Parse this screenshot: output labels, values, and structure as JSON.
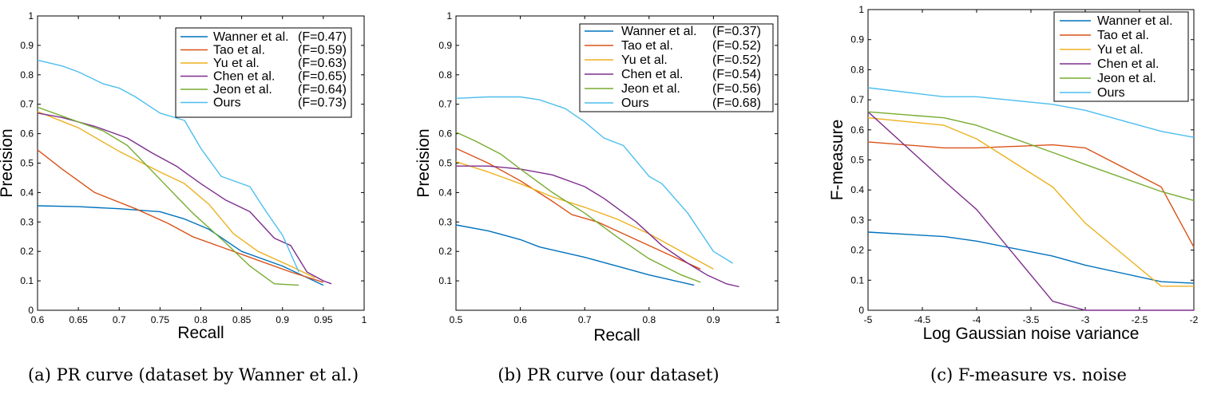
{
  "chart_data": [
    {
      "type": "line",
      "caption": "(a) PR curve (dataset by Wanner et al.)",
      "xlabel": "Recall",
      "ylabel": "Precision",
      "xlim": [
        0.6,
        1.0
      ],
      "ylim": [
        0,
        1
      ],
      "xticks": [
        0.6,
        0.65,
        0.7,
        0.75,
        0.8,
        0.85,
        0.9,
        0.95,
        1.0
      ],
      "xtick_labels": [
        "0.6",
        "0.65",
        "0.7",
        "0.75",
        "0.8",
        "0.85",
        "0.9",
        "0.95",
        "1"
      ],
      "yticks": [
        0,
        0.1,
        0.2,
        0.3,
        0.4,
        0.5,
        0.6,
        0.7,
        0.8,
        0.9,
        1.0
      ],
      "ytick_labels": [
        "0",
        "0.1",
        "0.2",
        "0.3",
        "0.4",
        "0.5",
        "0.6",
        "0.7",
        "0.8",
        "0.9",
        "1"
      ],
      "legend_position": "top-right",
      "grid": false,
      "series": [
        {
          "name": "Wanner et al.",
          "f_label": "(F=0.47)",
          "color": "#0072bd",
          "x": [
            0.6,
            0.65,
            0.7,
            0.75,
            0.78,
            0.81,
            0.85,
            0.9,
            0.95
          ],
          "y": [
            0.355,
            0.352,
            0.345,
            0.335,
            0.31,
            0.275,
            0.2,
            0.15,
            0.085
          ]
        },
        {
          "name": "Tao et al.",
          "f_label": "(F=0.59)",
          "color": "#d95319",
          "x": [
            0.6,
            0.63,
            0.67,
            0.72,
            0.76,
            0.79,
            0.83,
            0.87,
            0.91,
            0.95
          ],
          "y": [
            0.545,
            0.48,
            0.4,
            0.345,
            0.295,
            0.25,
            0.21,
            0.17,
            0.13,
            0.095
          ]
        },
        {
          "name": "Yu et al.",
          "f_label": "(F=0.63)",
          "color": "#edb120",
          "x": [
            0.6,
            0.65,
            0.7,
            0.75,
            0.78,
            0.81,
            0.84,
            0.87,
            0.91,
            0.94
          ],
          "y": [
            0.675,
            0.62,
            0.54,
            0.47,
            0.43,
            0.36,
            0.26,
            0.2,
            0.15,
            0.11
          ]
        },
        {
          "name": "Chen et al.",
          "f_label": "(F=0.65)",
          "color": "#7e2f8e",
          "x": [
            0.6,
            0.63,
            0.67,
            0.71,
            0.74,
            0.77,
            0.8,
            0.83,
            0.86,
            0.89,
            0.91,
            0.93,
            0.95,
            0.96
          ],
          "y": [
            0.67,
            0.655,
            0.625,
            0.585,
            0.535,
            0.49,
            0.43,
            0.375,
            0.335,
            0.245,
            0.22,
            0.13,
            0.1,
            0.09
          ]
        },
        {
          "name": "Jeon et al.",
          "f_label": "(F=0.64)",
          "color": "#77ac30",
          "x": [
            0.6,
            0.64,
            0.68,
            0.71,
            0.75,
            0.79,
            0.83,
            0.86,
            0.89,
            0.92
          ],
          "y": [
            0.69,
            0.65,
            0.61,
            0.56,
            0.445,
            0.33,
            0.23,
            0.15,
            0.09,
            0.085
          ]
        },
        {
          "name": "Ours",
          "f_label": "(F=0.73)",
          "color": "#4dbeee",
          "x": [
            0.6,
            0.63,
            0.65,
            0.68,
            0.7,
            0.72,
            0.75,
            0.78,
            0.8,
            0.825,
            0.86,
            0.88,
            0.9,
            0.92
          ],
          "y": [
            0.85,
            0.83,
            0.81,
            0.77,
            0.755,
            0.725,
            0.67,
            0.645,
            0.55,
            0.455,
            0.42,
            0.335,
            0.255,
            0.13
          ]
        }
      ]
    },
    {
      "type": "line",
      "caption": "(b) PR curve (our dataset)",
      "xlabel": "Recall",
      "ylabel": "Precision",
      "xlim": [
        0.5,
        1.0
      ],
      "ylim": [
        0,
        1
      ],
      "xticks": [
        0.5,
        0.6,
        0.7,
        0.8,
        0.9,
        1.0
      ],
      "xtick_labels": [
        "0.5",
        "0.6",
        "0.7",
        "0.8",
        "0.9",
        "1"
      ],
      "yticks": [
        0,
        0.1,
        0.2,
        0.3,
        0.4,
        0.5,
        0.6,
        0.7,
        0.8,
        0.9,
        1.0
      ],
      "ytick_labels": [
        "",
        "0.1",
        "0.2",
        "0.3",
        "0.4",
        "0.5",
        "0.6",
        "0.7",
        "0.8",
        "0.9",
        "1"
      ],
      "legend_position": "top-right",
      "grid": false,
      "series": [
        {
          "name": "Wanner et al.",
          "f_label": "(F=0.37)",
          "color": "#0072bd",
          "x": [
            0.5,
            0.55,
            0.6,
            0.63,
            0.7,
            0.75,
            0.8,
            0.87
          ],
          "y": [
            0.29,
            0.27,
            0.24,
            0.215,
            0.18,
            0.15,
            0.12,
            0.085
          ]
        },
        {
          "name": "Tao et al.",
          "f_label": "(F=0.52)",
          "color": "#d95319",
          "x": [
            0.5,
            0.55,
            0.6,
            0.65,
            0.68,
            0.72,
            0.77,
            0.82,
            0.86,
            0.88
          ],
          "y": [
            0.55,
            0.5,
            0.44,
            0.37,
            0.325,
            0.3,
            0.25,
            0.2,
            0.16,
            0.14
          ]
        },
        {
          "name": "Yu et al.",
          "f_label": "(F=0.52)",
          "color": "#edb120",
          "x": [
            0.5,
            0.55,
            0.6,
            0.65,
            0.7,
            0.75,
            0.8,
            0.85,
            0.9
          ],
          "y": [
            0.505,
            0.47,
            0.43,
            0.385,
            0.35,
            0.31,
            0.26,
            0.2,
            0.14
          ]
        },
        {
          "name": "Chen et al.",
          "f_label": "(F=0.54)",
          "color": "#7e2f8e",
          "x": [
            0.5,
            0.55,
            0.6,
            0.65,
            0.7,
            0.73,
            0.78,
            0.82,
            0.86,
            0.89,
            0.92,
            0.94
          ],
          "y": [
            0.49,
            0.49,
            0.48,
            0.46,
            0.42,
            0.38,
            0.3,
            0.22,
            0.16,
            0.12,
            0.09,
            0.08
          ]
        },
        {
          "name": "Jeon et al.",
          "f_label": "(F=0.56)",
          "color": "#77ac30",
          "x": [
            0.5,
            0.53,
            0.57,
            0.6,
            0.65,
            0.7,
            0.75,
            0.8,
            0.85,
            0.88
          ],
          "y": [
            0.605,
            0.575,
            0.53,
            0.48,
            0.4,
            0.33,
            0.25,
            0.175,
            0.12,
            0.095
          ]
        },
        {
          "name": "Ours",
          "f_label": "(F=0.68)",
          "color": "#4dbeee",
          "x": [
            0.5,
            0.55,
            0.6,
            0.63,
            0.67,
            0.7,
            0.73,
            0.76,
            0.8,
            0.82,
            0.86,
            0.9,
            0.93
          ],
          "y": [
            0.72,
            0.725,
            0.725,
            0.715,
            0.685,
            0.64,
            0.585,
            0.56,
            0.455,
            0.43,
            0.33,
            0.2,
            0.16
          ]
        }
      ]
    },
    {
      "type": "line",
      "caption": "(c) F-measure vs. noise",
      "xlabel": "Log Gaussian noise variance",
      "ylabel": "F-measure",
      "xlim": [
        -5,
        -2
      ],
      "ylim": [
        0,
        1
      ],
      "xticks": [
        -5,
        -4.5,
        -4,
        -3.5,
        -3,
        -2.5,
        -2
      ],
      "xtick_labels": [
        "-5",
        "-4.5",
        "-4",
        "-3.5",
        "-3",
        "-2.5",
        "-2"
      ],
      "yticks": [
        0,
        0.1,
        0.2,
        0.3,
        0.4,
        0.5,
        0.6,
        0.7,
        0.8,
        0.9,
        1.0
      ],
      "ytick_labels": [
        "0",
        "0.1",
        "0.2",
        "0.3",
        "0.4",
        "0.5",
        "0.6",
        "0.7",
        "0.8",
        "0.9",
        "1"
      ],
      "legend_position": "top-right",
      "grid": false,
      "series": [
        {
          "name": "Wanner et al.",
          "f_label": "",
          "color": "#0072bd",
          "x": [
            -5,
            -4.3,
            -4,
            -3.3,
            -3,
            -2.3,
            -2
          ],
          "y": [
            0.26,
            0.245,
            0.23,
            0.18,
            0.15,
            0.095,
            0.09
          ]
        },
        {
          "name": "Tao et al.",
          "f_label": "",
          "color": "#d95319",
          "x": [
            -5,
            -4.3,
            -4,
            -3.3,
            -3,
            -2.3,
            -2
          ],
          "y": [
            0.56,
            0.54,
            0.54,
            0.55,
            0.54,
            0.41,
            0.21
          ]
        },
        {
          "name": "Yu et al.",
          "f_label": "",
          "color": "#edb120",
          "x": [
            -5,
            -4.3,
            -4,
            -3.3,
            -3,
            -2.3,
            -2
          ],
          "y": [
            0.64,
            0.615,
            0.57,
            0.41,
            0.29,
            0.08,
            0.08
          ]
        },
        {
          "name": "Chen et al.",
          "f_label": "",
          "color": "#7e2f8e",
          "x": [
            -5,
            -4.3,
            -4,
            -3.3,
            -3,
            -2.3,
            -2
          ],
          "y": [
            0.66,
            0.43,
            0.335,
            0.03,
            0.0,
            0.0,
            0.0
          ]
        },
        {
          "name": "Jeon et al.",
          "f_label": "",
          "color": "#77ac30",
          "x": [
            -5,
            -4.3,
            -4,
            -3.3,
            -3,
            -2.3,
            -2
          ],
          "y": [
            0.66,
            0.64,
            0.615,
            0.525,
            0.485,
            0.395,
            0.365
          ]
        },
        {
          "name": "Ours",
          "f_label": "",
          "color": "#4dbeee",
          "x": [
            -5,
            -4.3,
            -4,
            -3.3,
            -3,
            -2.3,
            -2
          ],
          "y": [
            0.74,
            0.71,
            0.71,
            0.685,
            0.665,
            0.595,
            0.575
          ]
        }
      ]
    }
  ]
}
